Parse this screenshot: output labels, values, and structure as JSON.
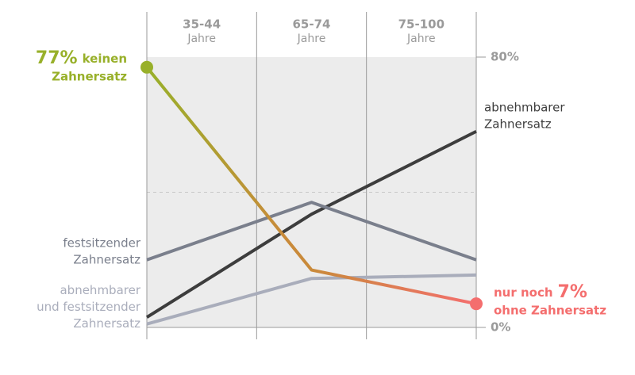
{
  "chart_data": {
    "type": "line",
    "categories": [
      "35-44",
      "65-74",
      "75-100"
    ],
    "category_unit": "Jahre",
    "ylim": [
      0,
      80
    ],
    "yticks": [
      {
        "value": 0,
        "label": "0%"
      },
      {
        "value": 80,
        "label": "80%"
      }
    ],
    "dashed_gridlines": [
      40
    ],
    "series": [
      {
        "name": "abnehmbarer Zahnersatz",
        "name_lines": [
          "abnehmbarer",
          "Zahnersatz"
        ],
        "color": "#3d3d3d",
        "label_side": "right",
        "values": [
          3,
          33.5,
          58
        ]
      },
      {
        "name": "festsitzender Zahnersatz",
        "name_lines": [
          "festsitzender",
          "Zahnersatz"
        ],
        "color": "#7a7f8c",
        "label_side": "left",
        "values": [
          20,
          37,
          20
        ]
      },
      {
        "name": "abnehmbarer und festsitzender Zahnersatz",
        "name_lines": [
          "abnehmbarer",
          "und festsitzender",
          "Zahnersatz"
        ],
        "color": "#a9adbb",
        "label_side": "left",
        "values": [
          1,
          14.5,
          15.5
        ]
      },
      {
        "name": "keinen Zahnersatz",
        "color": "#98b02a",
        "mid_color": "#c98a3a",
        "end_color": "#f46e6e",
        "values": [
          77,
          17,
          7
        ],
        "value_labels": [
          "77%",
          null,
          "7%"
        ],
        "start_label": [
          "keinen",
          "Zahnersatz"
        ],
        "end_label": [
          "nur noch",
          "ohne Zahnersatz"
        ]
      }
    ]
  }
}
